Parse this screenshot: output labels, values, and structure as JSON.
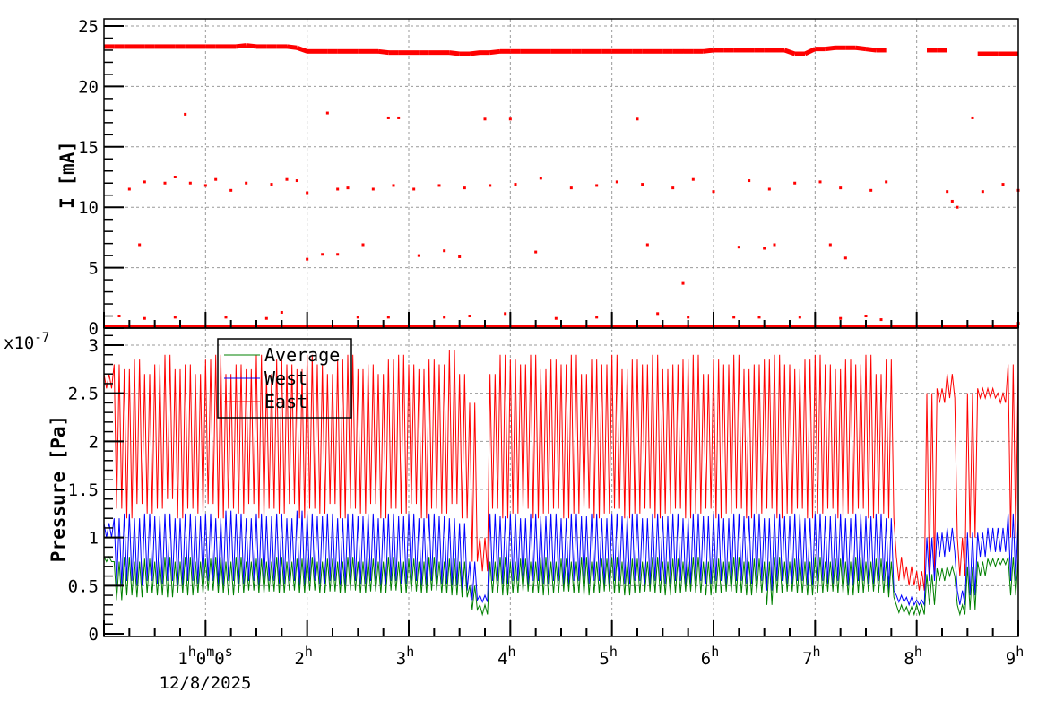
{
  "chart_data": [
    {
      "type": "scatter",
      "ylabel": "I [mA]",
      "ylim": [
        0,
        25
      ],
      "yticks": [
        "0",
        "5",
        "10",
        "15",
        "20",
        "25"
      ],
      "xlim_hours": [
        0,
        9
      ],
      "grid": true,
      "color": "#ff0000",
      "main_band_step_h": 0.1,
      "main_band": [
        23.3,
        23.3,
        23.3,
        23.3,
        23.3,
        23.3,
        23.3,
        23.3,
        23.3,
        23.3,
        23.3,
        23.3,
        23.3,
        23.3,
        23.4,
        23.3,
        23.3,
        23.3,
        23.3,
        23.2,
        22.9,
        22.9,
        22.9,
        22.9,
        22.9,
        22.9,
        22.9,
        22.9,
        22.8,
        22.8,
        22.8,
        22.8,
        22.8,
        22.8,
        22.8,
        22.7,
        22.7,
        22.8,
        22.8,
        22.9,
        22.9,
        22.9,
        22.9,
        22.9,
        22.9,
        22.9,
        22.9,
        22.9,
        22.9,
        22.9,
        22.9,
        22.9,
        22.9,
        22.9,
        22.9,
        22.9,
        22.9,
        22.9,
        22.9,
        22.9,
        23.0,
        23.0,
        23.0,
        23.0,
        23.0,
        23.0,
        23.0,
        23.0,
        22.7,
        22.7,
        23.1,
        23.1,
        23.2,
        23.2,
        23.2,
        23.1,
        23.0,
        23.0,
        null,
        null,
        null,
        23.0,
        23.0,
        23.0,
        null,
        null,
        22.7,
        22.7,
        22.7,
        22.7,
        22.7
      ],
      "baseline": 0.1,
      "outliers": [
        [
          0.8,
          17.7
        ],
        [
          2.2,
          17.8
        ],
        [
          2.8,
          17.4
        ],
        [
          2.9,
          17.4
        ],
        [
          3.75,
          17.3
        ],
        [
          4.0,
          17.3
        ],
        [
          5.25,
          17.3
        ],
        [
          8.55,
          17.4
        ],
        [
          0.35,
          6.9
        ],
        [
          2.0,
          5.7
        ],
        [
          2.15,
          6.1
        ],
        [
          2.3,
          6.1
        ],
        [
          2.55,
          6.9
        ],
        [
          3.1,
          6.0
        ],
        [
          3.35,
          6.4
        ],
        [
          3.5,
          5.9
        ],
        [
          4.25,
          6.3
        ],
        [
          5.35,
          6.9
        ],
        [
          6.25,
          6.7
        ],
        [
          6.5,
          6.6
        ],
        [
          6.6,
          6.9
        ],
        [
          7.15,
          6.9
        ],
        [
          7.3,
          5.8
        ],
        [
          5.7,
          3.7
        ],
        [
          0.25,
          11.5
        ],
        [
          0.4,
          12.1
        ],
        [
          0.6,
          12.0
        ],
        [
          0.7,
          12.5
        ],
        [
          0.85,
          12.0
        ],
        [
          1.0,
          11.8
        ],
        [
          1.1,
          12.3
        ],
        [
          1.25,
          11.4
        ],
        [
          1.4,
          12.0
        ],
        [
          1.65,
          11.9
        ],
        [
          1.8,
          12.3
        ],
        [
          1.9,
          12.2
        ],
        [
          2.0,
          11.2
        ],
        [
          2.3,
          11.5
        ],
        [
          2.4,
          11.6
        ],
        [
          2.65,
          11.5
        ],
        [
          2.85,
          11.8
        ],
        [
          3.05,
          11.5
        ],
        [
          3.3,
          11.8
        ],
        [
          3.55,
          11.6
        ],
        [
          3.8,
          11.8
        ],
        [
          4.05,
          11.9
        ],
        [
          4.3,
          12.4
        ],
        [
          4.6,
          11.6
        ],
        [
          4.85,
          11.8
        ],
        [
          5.05,
          12.1
        ],
        [
          5.3,
          11.9
        ],
        [
          5.6,
          11.6
        ],
        [
          5.8,
          12.3
        ],
        [
          6.0,
          11.3
        ],
        [
          6.35,
          12.2
        ],
        [
          6.55,
          11.5
        ],
        [
          6.8,
          12.0
        ],
        [
          7.05,
          12.1
        ],
        [
          7.25,
          11.6
        ],
        [
          7.55,
          11.4
        ],
        [
          7.7,
          12.1
        ],
        [
          8.3,
          11.3
        ],
        [
          8.35,
          10.5
        ],
        [
          8.4,
          10.0
        ],
        [
          8.65,
          11.3
        ],
        [
          8.85,
          11.9
        ],
        [
          9.0,
          11.4
        ],
        [
          0.15,
          1.0
        ],
        [
          0.4,
          0.8
        ],
        [
          0.7,
          0.9
        ],
        [
          1.2,
          0.9
        ],
        [
          1.6,
          0.8
        ],
        [
          1.75,
          1.3
        ],
        [
          2.5,
          0.9
        ],
        [
          2.8,
          0.9
        ],
        [
          3.35,
          0.9
        ],
        [
          3.6,
          1.0
        ],
        [
          3.95,
          1.2
        ],
        [
          4.45,
          0.8
        ],
        [
          4.85,
          0.9
        ],
        [
          5.45,
          1.2
        ],
        [
          5.75,
          0.9
        ],
        [
          6.2,
          0.9
        ],
        [
          6.45,
          0.9
        ],
        [
          6.85,
          0.9
        ],
        [
          7.25,
          0.8
        ],
        [
          7.5,
          1.0
        ],
        [
          7.65,
          0.7
        ],
        [
          9.0,
          0.4
        ]
      ]
    },
    {
      "type": "line",
      "ylabel": "Pressure [Pa]",
      "y_multiplier": "x10",
      "y_exponent": "-7",
      "ylim": [
        0,
        3.1
      ],
      "yticks": [
        "0",
        "0.5",
        "1",
        "1.5",
        "2",
        "2.5",
        "3"
      ],
      "grid": true,
      "legend_placement": "top-left",
      "step_h": 0.1,
      "series": [
        {
          "name": "Average",
          "color": "#008000",
          "max": [
            0.8,
            0.75,
            0.8,
            0.75,
            0.78,
            0.75,
            0.8,
            0.75,
            0.8,
            0.75,
            0.78,
            0.8,
            0.75,
            0.8,
            0.75,
            0.78,
            0.75,
            0.8,
            0.75,
            0.78,
            0.8,
            0.75,
            0.78,
            0.75,
            0.8,
            0.75,
            0.78,
            0.75,
            0.8,
            0.75,
            0.78,
            0.75,
            0.8,
            0.75,
            0.78,
            0.75,
            0.5,
            0.3,
            0.75,
            0.8,
            0.75,
            0.78,
            0.75,
            0.8,
            0.75,
            0.78,
            0.75,
            0.8,
            0.75,
            0.78,
            0.8,
            0.75,
            0.78,
            0.75,
            0.8,
            0.75,
            0.78,
            0.75,
            0.8,
            0.75,
            0.78,
            0.75,
            0.8,
            0.75,
            0.78,
            0.75,
            0.8,
            0.75,
            0.78,
            0.75,
            0.8,
            0.75,
            0.78,
            0.75,
            0.8,
            0.75,
            0.78,
            0.75,
            0.3,
            0.28,
            0.3,
            0.62,
            0.68,
            0.7,
            0.3,
            0.7,
            0.75,
            0.78,
            0.78,
            0.8,
            0.78
          ],
          "min": [
            0.75,
            0.35,
            0.4,
            0.38,
            0.42,
            0.4,
            0.38,
            0.42,
            0.4,
            0.42,
            0.45,
            0.42,
            0.4,
            0.42,
            0.45,
            0.42,
            0.44,
            0.42,
            0.45,
            0.42,
            0.45,
            0.42,
            0.44,
            0.42,
            0.45,
            0.42,
            0.44,
            0.42,
            0.45,
            0.42,
            0.44,
            0.42,
            0.45,
            0.42,
            0.4,
            0.38,
            0.25,
            0.2,
            0.42,
            0.4,
            0.42,
            0.44,
            0.42,
            0.4,
            0.42,
            0.44,
            0.42,
            0.4,
            0.42,
            0.44,
            0.42,
            0.4,
            0.42,
            0.44,
            0.42,
            0.4,
            0.42,
            0.44,
            0.42,
            0.4,
            0.42,
            0.44,
            0.42,
            0.4,
            0.42,
            0.3,
            0.42,
            0.44,
            0.42,
            0.4,
            0.42,
            0.44,
            0.42,
            0.4,
            0.42,
            0.44,
            0.42,
            0.38,
            0.22,
            0.2,
            0.2,
            0.3,
            0.55,
            0.6,
            0.2,
            0.25,
            0.6,
            0.7,
            0.72,
            0.4,
            0.45
          ]
        },
        {
          "name": "West",
          "color": "#0000ff",
          "max": [
            1.15,
            1.2,
            1.25,
            1.2,
            1.25,
            1.22,
            1.25,
            1.2,
            1.25,
            1.22,
            1.25,
            1.2,
            1.28,
            1.25,
            1.2,
            1.25,
            1.22,
            1.25,
            1.2,
            1.28,
            1.25,
            1.22,
            1.25,
            1.2,
            1.25,
            1.22,
            1.25,
            1.2,
            1.25,
            1.22,
            1.25,
            1.2,
            1.25,
            1.22,
            1.2,
            1.15,
            0.75,
            0.4,
            1.25,
            1.22,
            1.25,
            1.2,
            1.25,
            1.22,
            1.25,
            1.2,
            1.25,
            1.22,
            1.25,
            1.2,
            1.25,
            1.22,
            1.25,
            1.2,
            1.25,
            1.22,
            1.25,
            1.2,
            1.25,
            1.22,
            1.25,
            1.2,
            1.25,
            1.22,
            1.25,
            1.2,
            1.25,
            1.22,
            1.25,
            1.2,
            1.25,
            1.22,
            1.25,
            1.2,
            1.25,
            1.22,
            1.25,
            1.2,
            0.4,
            0.38,
            0.35,
            1.0,
            1.05,
            1.1,
            0.45,
            1.05,
            1.05,
            1.1,
            1.1,
            1.25,
            1.2
          ],
          "min": [
            1.0,
            0.5,
            0.55,
            0.5,
            0.55,
            0.52,
            0.55,
            0.5,
            0.55,
            0.52,
            0.55,
            0.5,
            0.55,
            0.52,
            0.55,
            0.5,
            0.55,
            0.52,
            0.55,
            0.5,
            0.55,
            0.52,
            0.55,
            0.5,
            0.55,
            0.52,
            0.55,
            0.5,
            0.55,
            0.52,
            0.55,
            0.5,
            0.55,
            0.52,
            0.5,
            0.45,
            0.35,
            0.33,
            0.55,
            0.52,
            0.55,
            0.5,
            0.55,
            0.52,
            0.55,
            0.5,
            0.55,
            0.52,
            0.55,
            0.5,
            0.55,
            0.52,
            0.55,
            0.5,
            0.55,
            0.52,
            0.55,
            0.5,
            0.55,
            0.52,
            0.55,
            0.5,
            0.55,
            0.52,
            0.55,
            0.45,
            0.55,
            0.52,
            0.55,
            0.5,
            0.55,
            0.52,
            0.55,
            0.5,
            0.55,
            0.52,
            0.55,
            0.45,
            0.33,
            0.3,
            0.3,
            0.55,
            0.8,
            0.85,
            0.3,
            0.4,
            0.8,
            0.85,
            0.85,
            0.55,
            0.6
          ]
        },
        {
          "name": "East",
          "color": "#ff0000",
          "max": [
            2.7,
            2.8,
            2.75,
            2.85,
            2.7,
            2.8,
            2.9,
            2.75,
            2.8,
            2.7,
            2.85,
            2.9,
            2.7,
            2.8,
            2.75,
            2.9,
            2.7,
            2.85,
            2.8,
            2.75,
            2.9,
            2.8,
            2.7,
            2.85,
            2.9,
            2.75,
            2.8,
            2.7,
            2.85,
            2.9,
            2.8,
            2.75,
            2.85,
            2.8,
            2.95,
            2.7,
            2.4,
            1.0,
            2.7,
            2.9,
            2.85,
            2.8,
            2.9,
            2.75,
            2.85,
            2.8,
            2.9,
            2.7,
            2.85,
            2.8,
            2.9,
            2.75,
            2.85,
            2.8,
            2.9,
            2.75,
            2.8,
            2.85,
            2.9,
            2.7,
            2.85,
            2.8,
            2.9,
            2.75,
            2.8,
            2.85,
            2.9,
            2.8,
            2.75,
            2.85,
            2.9,
            2.8,
            2.75,
            2.85,
            2.8,
            2.9,
            2.7,
            2.85,
            0.8,
            0.7,
            0.65,
            2.5,
            2.55,
            2.7,
            1.0,
            2.5,
            2.55,
            2.55,
            2.5,
            2.8,
            2.75
          ],
          "min": [
            2.55,
            1.3,
            1.2,
            1.35,
            1.25,
            1.3,
            1.4,
            1.2,
            1.3,
            1.25,
            1.35,
            1.2,
            1.3,
            1.25,
            1.35,
            1.2,
            1.3,
            1.25,
            1.35,
            1.2,
            1.3,
            1.25,
            1.35,
            1.2,
            1.3,
            1.25,
            1.35,
            1.2,
            1.3,
            1.25,
            1.35,
            1.2,
            1.3,
            1.25,
            1.35,
            1.2,
            0.75,
            0.65,
            1.3,
            1.2,
            1.25,
            1.3,
            1.2,
            1.25,
            1.3,
            1.2,
            1.25,
            1.3,
            1.2,
            1.25,
            1.3,
            1.2,
            1.25,
            1.3,
            1.2,
            1.25,
            1.3,
            1.2,
            1.25,
            1.3,
            1.2,
            1.25,
            1.3,
            1.2,
            1.25,
            1.3,
            1.2,
            1.25,
            1.3,
            1.2,
            1.25,
            1.3,
            1.2,
            1.25,
            1.3,
            1.2,
            1.25,
            1.2,
            0.55,
            0.5,
            0.45,
            0.6,
            2.4,
            2.45,
            0.6,
            1.0,
            2.45,
            2.45,
            2.4,
            1.0,
            1.2
          ]
        }
      ]
    }
  ],
  "x_axis": {
    "first_label": {
      "h": "1",
      "m": "0",
      "s": "0"
    },
    "date": "12/8/2025",
    "hour_labels": [
      "2",
      "3",
      "4",
      "5",
      "6",
      "7",
      "8",
      "9"
    ],
    "hour_unit": "h",
    "minute_unit": "m",
    "second_unit": "s"
  }
}
